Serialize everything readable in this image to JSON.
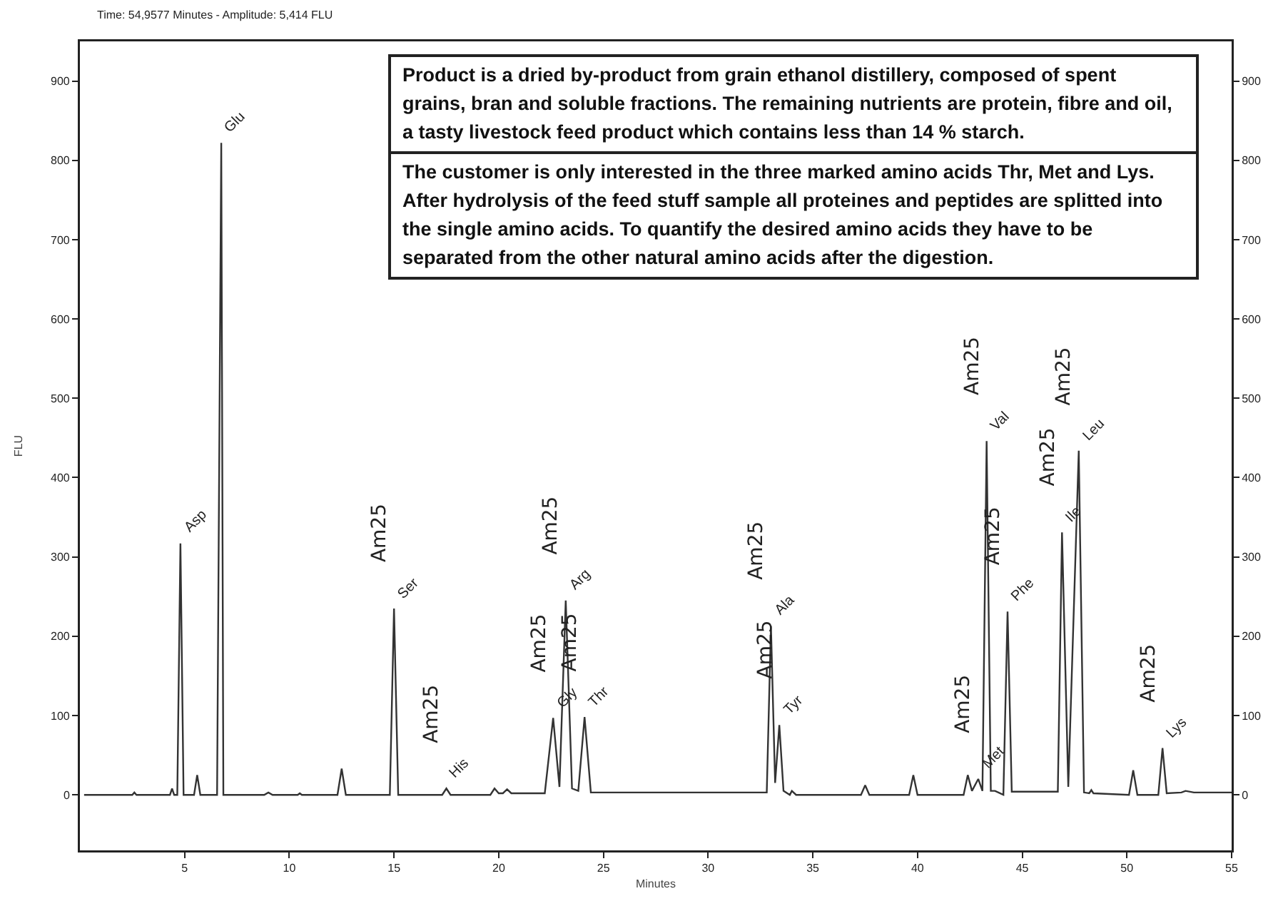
{
  "chart_data": {
    "type": "line",
    "xlabel": "Minutes",
    "ylabel": "FLU",
    "xlim": [
      0,
      55
    ],
    "xticks": [
      5,
      10,
      15,
      20,
      25,
      30,
      35,
      40,
      45,
      50,
      55
    ],
    "ylim": [
      -70,
      950
    ],
    "yticks": [
      0,
      100,
      200,
      300,
      400,
      500,
      600,
      700,
      800,
      900
    ],
    "y2lim": [
      -70,
      950
    ],
    "y2ticks": [
      0,
      100,
      200,
      300,
      400,
      500,
      600,
      700,
      800,
      900
    ],
    "grid": false,
    "legend": false,
    "marker": "none",
    "line_style": "solid",
    "series": [
      {
        "color": "#333333",
        "x": [
          0.2,
          2.5,
          2.6,
          2.7,
          4.3,
          4.4,
          4.5,
          4.65,
          4.8,
          4.95,
          5.45,
          5.6,
          5.75,
          6.55,
          6.75,
          6.85,
          7.1,
          8.8,
          9.0,
          9.2,
          10.4,
          10.5,
          10.6,
          12.3,
          12.5,
          12.7,
          14.8,
          15.0,
          15.2,
          17.3,
          17.5,
          17.7,
          19.6,
          19.8,
          20.0,
          20.2,
          20.4,
          20.6,
          22.2,
          22.6,
          22.9,
          23.2,
          23.5,
          23.8,
          24.1,
          24.4,
          32.8,
          33.0,
          33.2,
          33.4,
          33.6,
          33.9,
          34.0,
          34.2,
          37.3,
          37.5,
          37.7,
          39.6,
          39.8,
          40.0,
          42.2,
          42.4,
          42.6,
          42.9,
          43.1,
          43.3,
          43.5,
          43.7,
          44.1,
          44.3,
          44.5,
          46.7,
          46.9,
          47.2,
          47.7,
          47.95,
          48.2,
          48.3,
          48.4,
          50.1,
          50.3,
          50.5,
          51.5,
          51.7,
          51.9,
          52.6,
          52.8,
          53.2,
          55
        ],
        "values": [
          0,
          0,
          3,
          0,
          0,
          8,
          0,
          0,
          317,
          0,
          0,
          25,
          0,
          0,
          822,
          0,
          0,
          0,
          3,
          0,
          0,
          2,
          0,
          0,
          33,
          0,
          0,
          235,
          0,
          0,
          8,
          0,
          0,
          8,
          2,
          2,
          7,
          2,
          2,
          97,
          10,
          245,
          8,
          5,
          98,
          3,
          3,
          213,
          15,
          88,
          5,
          0,
          5,
          0,
          0,
          12,
          0,
          0,
          25,
          0,
          0,
          25,
          5,
          20,
          5,
          446,
          5,
          5,
          0,
          231,
          4,
          4,
          331,
          10,
          434,
          3,
          2,
          6,
          2,
          0,
          31,
          0,
          0,
          59,
          2,
          3,
          5,
          3,
          3
        ]
      }
    ],
    "annotations": [
      "Time:  54,9577 Minutes - Amplitude:  5,414 FLU",
      "Product is a dried by-product from grain ethanol distillery, composed of spent grains, bran and soluble fractions. The remaining nutrients are protein, fibre and oil, a tasty livestock feed product which contains less than 14 % starch.",
      "The customer is only interested in the three marked amino acids Thr, Met and Lys. After hydrolysis of the feed stuff sample all proteines and peptides are splitted into the single amino acids. To quantify the desired amino acids they have to be separated from the other natural amino acids after the digestion.",
      {
        "text": "Asp",
        "x": 4.8,
        "y": 317
      },
      {
        "text": "Glu",
        "x": 6.75,
        "y": 822
      },
      {
        "text": "Ser",
        "x": 15.0,
        "y": 235
      },
      {
        "text": "His",
        "x": 17.5,
        "y": 8
      },
      {
        "text": "Gly",
        "x": 22.6,
        "y": 97
      },
      {
        "text": "Arg",
        "x": 23.2,
        "y": 245
      },
      {
        "text": "Thr",
        "x": 24.1,
        "y": 98
      },
      {
        "text": "Ala",
        "x": 33.0,
        "y": 213
      },
      {
        "text": "Tyr",
        "x": 33.4,
        "y": 88
      },
      {
        "text": "Met",
        "x": 42.9,
        "y": 20
      },
      {
        "text": "Val",
        "x": 43.3,
        "y": 446
      },
      {
        "text": "Phe",
        "x": 44.3,
        "y": 231
      },
      {
        "text": "Ile",
        "x": 46.9,
        "y": 331
      },
      {
        "text": "Leu",
        "x": 47.7,
        "y": 434
      },
      {
        "text": "Lys",
        "x": 51.7,
        "y": 59
      },
      {
        "text": "Am25",
        "x": 15.0,
        "y": 235
      },
      {
        "text": "Am25",
        "x": 17.5,
        "y": 8
      },
      {
        "text": "Am25",
        "x": 22.6,
        "y": 97
      },
      {
        "text": "Am25",
        "x": 23.2,
        "y": 245
      },
      {
        "text": "Am25",
        "x": 24.1,
        "y": 98
      },
      {
        "text": "Am25",
        "x": 33.0,
        "y": 213
      },
      {
        "text": "Am25",
        "x": 33.4,
        "y": 88
      },
      {
        "text": "Am25",
        "x": 42.9,
        "y": 20
      },
      {
        "text": "Am25",
        "x": 43.3,
        "y": 446
      },
      {
        "text": "Am25",
        "x": 44.3,
        "y": 231
      },
      {
        "text": "Am25",
        "x": 46.9,
        "y": 331
      },
      {
        "text": "Am25",
        "x": 47.7,
        "y": 434
      },
      {
        "text": "Am25",
        "x": 51.7,
        "y": 59
      }
    ]
  }
}
